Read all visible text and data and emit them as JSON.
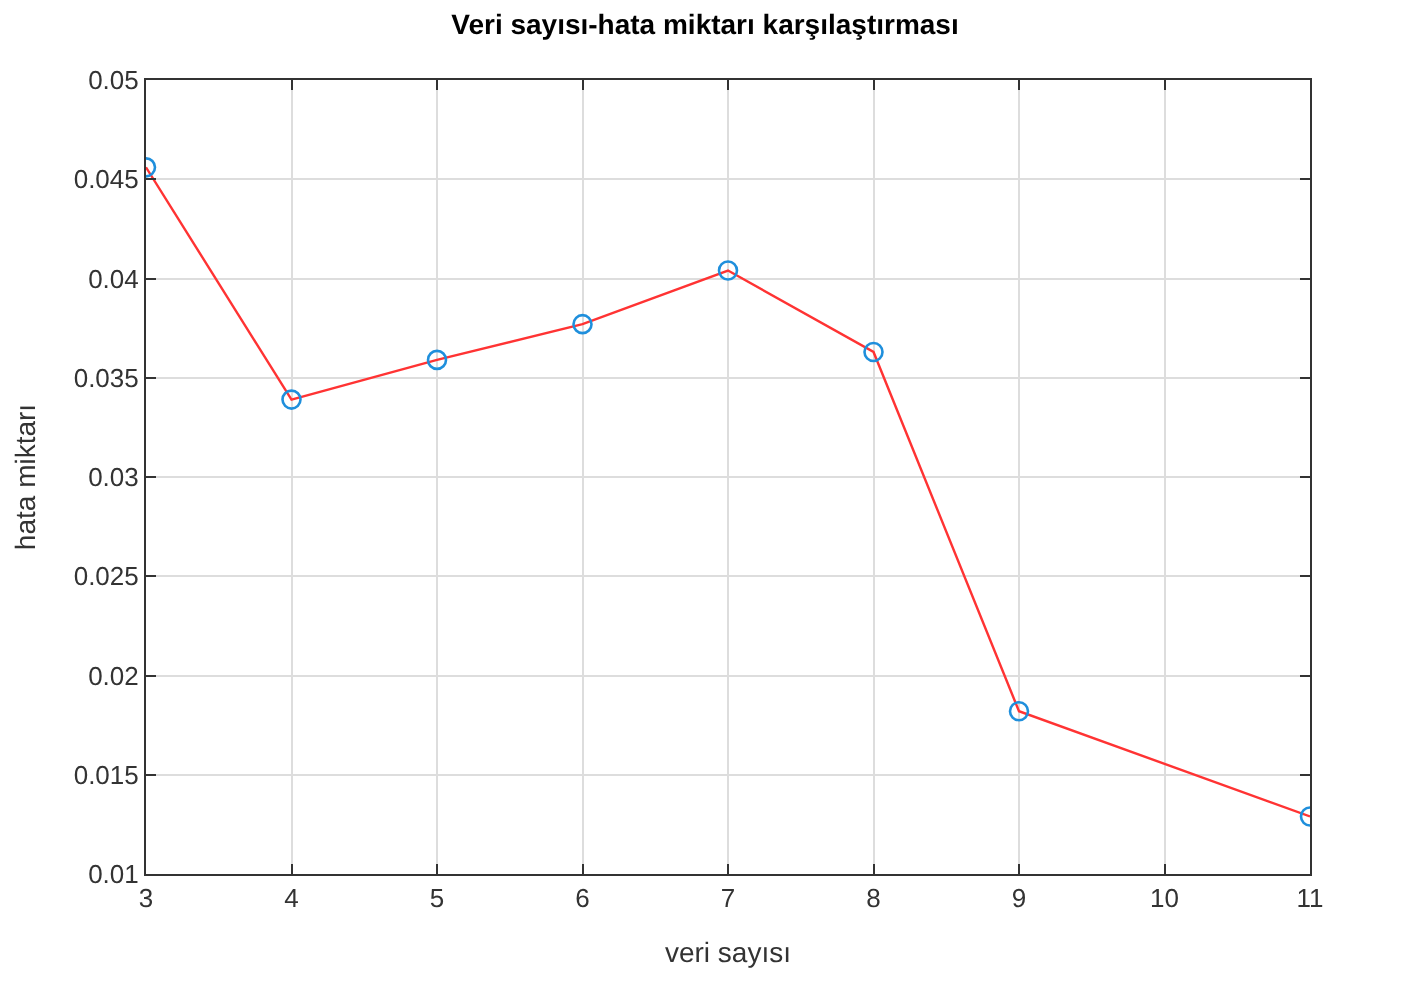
{
  "chart_data": {
    "type": "line",
    "title": "Veri sayısı-hata miktarı karşılaştırması",
    "xlabel": "veri sayısı",
    "ylabel": "hata miktarı",
    "x": [
      3,
      4,
      5,
      6,
      7,
      8,
      9,
      11
    ],
    "series": [
      {
        "color": "#ff3333",
        "values": [
          0.0456,
          0.0339,
          0.0359,
          0.0377,
          0.0404,
          0.0363,
          0.0182,
          0.0129
        ]
      }
    ],
    "marker": "circle",
    "line_style": "solid",
    "grid": true,
    "legend": false,
    "xlim": [
      3,
      11
    ],
    "xticks": [
      3,
      4,
      5,
      6,
      7,
      8,
      9,
      10,
      11
    ],
    "ylim": [
      0.01,
      0.05
    ],
    "yticks": [
      0.01,
      0.015,
      0.02,
      0.025,
      0.03,
      0.035,
      0.04,
      0.045,
      0.05
    ]
  }
}
